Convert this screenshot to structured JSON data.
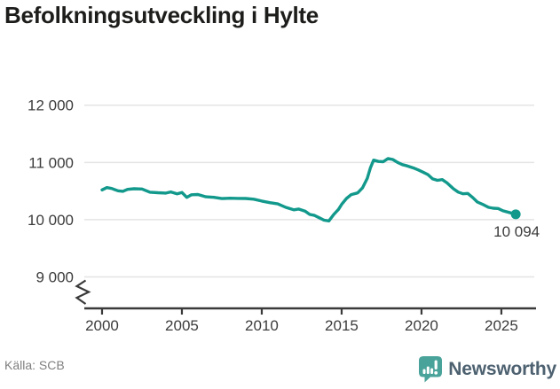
{
  "title": "Befolkningsutveckling i Hylte",
  "source": "Källa: SCB",
  "brand": {
    "name": "Newsworthy"
  },
  "colors": {
    "line": "#12998c",
    "grid": "#e4e4e4",
    "axis": "#3a3a3a",
    "tick_label": "#3c3c3c",
    "end_label": "#3a3a3a",
    "title": "#1d1d1b",
    "source_text": "#7f7f7f",
    "brand_icon": "#4aa39a",
    "brand_text": "#4d6170"
  },
  "chart_data": {
    "type": "line",
    "title": "Befolkningsutveckling i Hylte",
    "xlabel": "",
    "ylabel": "",
    "grid": "horizontal",
    "legend": "none",
    "y_axis_truncated": true,
    "xlim": [
      1998.89,
      2027.17
    ],
    "ylim": [
      8450,
      12290
    ],
    "xticks": [
      {
        "value": 2000,
        "label": "2000"
      },
      {
        "value": 2005,
        "label": "2005"
      },
      {
        "value": 2010,
        "label": "2010"
      },
      {
        "value": 2015,
        "label": "2015"
      },
      {
        "value": 2020,
        "label": "2020"
      },
      {
        "value": 2025,
        "label": "2025"
      }
    ],
    "yticks": [
      {
        "value": 9000,
        "label": "9 000"
      },
      {
        "value": 10000,
        "label": "10 000"
      },
      {
        "value": 11000,
        "label": "11 000"
      },
      {
        "value": 12000,
        "label": "12 000"
      }
    ],
    "end_label": "10 094",
    "end_value": 10094,
    "points": [
      [
        2000.0,
        10520
      ],
      [
        2000.3,
        10560
      ],
      [
        2000.6,
        10545
      ],
      [
        2001.0,
        10505
      ],
      [
        2001.3,
        10495
      ],
      [
        2001.6,
        10530
      ],
      [
        2002.0,
        10540
      ],
      [
        2002.5,
        10535
      ],
      [
        2003.0,
        10480
      ],
      [
        2003.5,
        10470
      ],
      [
        2004.0,
        10465
      ],
      [
        2004.3,
        10485
      ],
      [
        2004.7,
        10450
      ],
      [
        2005.0,
        10475
      ],
      [
        2005.3,
        10390
      ],
      [
        2005.6,
        10435
      ],
      [
        2006.0,
        10440
      ],
      [
        2006.5,
        10400
      ],
      [
        2007.0,
        10390
      ],
      [
        2007.5,
        10368
      ],
      [
        2008.0,
        10375
      ],
      [
        2008.5,
        10372
      ],
      [
        2009.0,
        10370
      ],
      [
        2009.5,
        10358
      ],
      [
        2010.0,
        10325
      ],
      [
        2010.5,
        10297
      ],
      [
        2011.0,
        10275
      ],
      [
        2011.5,
        10215
      ],
      [
        2012.0,
        10172
      ],
      [
        2012.3,
        10185
      ],
      [
        2012.7,
        10150
      ],
      [
        2013.0,
        10092
      ],
      [
        2013.3,
        10075
      ],
      [
        2013.6,
        10032
      ],
      [
        2013.9,
        9990
      ],
      [
        2014.2,
        9978
      ],
      [
        2014.5,
        10090
      ],
      [
        2014.8,
        10180
      ],
      [
        2015.0,
        10268
      ],
      [
        2015.3,
        10370
      ],
      [
        2015.6,
        10438
      ],
      [
        2016.0,
        10468
      ],
      [
        2016.3,
        10555
      ],
      [
        2016.6,
        10720
      ],
      [
        2016.8,
        10905
      ],
      [
        2017.0,
        11040
      ],
      [
        2017.3,
        11018
      ],
      [
        2017.6,
        11012
      ],
      [
        2017.9,
        11068
      ],
      [
        2018.2,
        11052
      ],
      [
        2018.5,
        11000
      ],
      [
        2018.8,
        10962
      ],
      [
        2019.1,
        10940
      ],
      [
        2019.5,
        10902
      ],
      [
        2019.8,
        10868
      ],
      [
        2020.1,
        10830
      ],
      [
        2020.4,
        10788
      ],
      [
        2020.7,
        10712
      ],
      [
        2021.0,
        10688
      ],
      [
        2021.3,
        10700
      ],
      [
        2021.6,
        10642
      ],
      [
        2022.0,
        10540
      ],
      [
        2022.3,
        10482
      ],
      [
        2022.6,
        10452
      ],
      [
        2022.9,
        10458
      ],
      [
        2023.2,
        10388
      ],
      [
        2023.5,
        10308
      ],
      [
        2023.9,
        10258
      ],
      [
        2024.2,
        10215
      ],
      [
        2024.5,
        10200
      ],
      [
        2024.8,
        10195
      ],
      [
        2025.1,
        10155
      ],
      [
        2025.5,
        10126
      ],
      [
        2025.9,
        10094
      ]
    ]
  }
}
